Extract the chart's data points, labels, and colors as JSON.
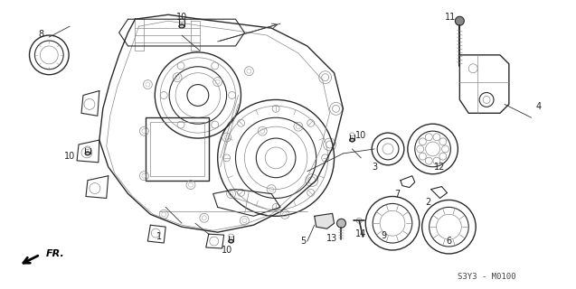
{
  "fig_width": 6.37,
  "fig_height": 3.2,
  "dpi": 100,
  "background_color": "#ffffff",
  "footer_code": "S3Y3 - M0100",
  "line_color": "#2a2a2a",
  "gray_color": "#888888",
  "light_gray": "#aaaaaa"
}
